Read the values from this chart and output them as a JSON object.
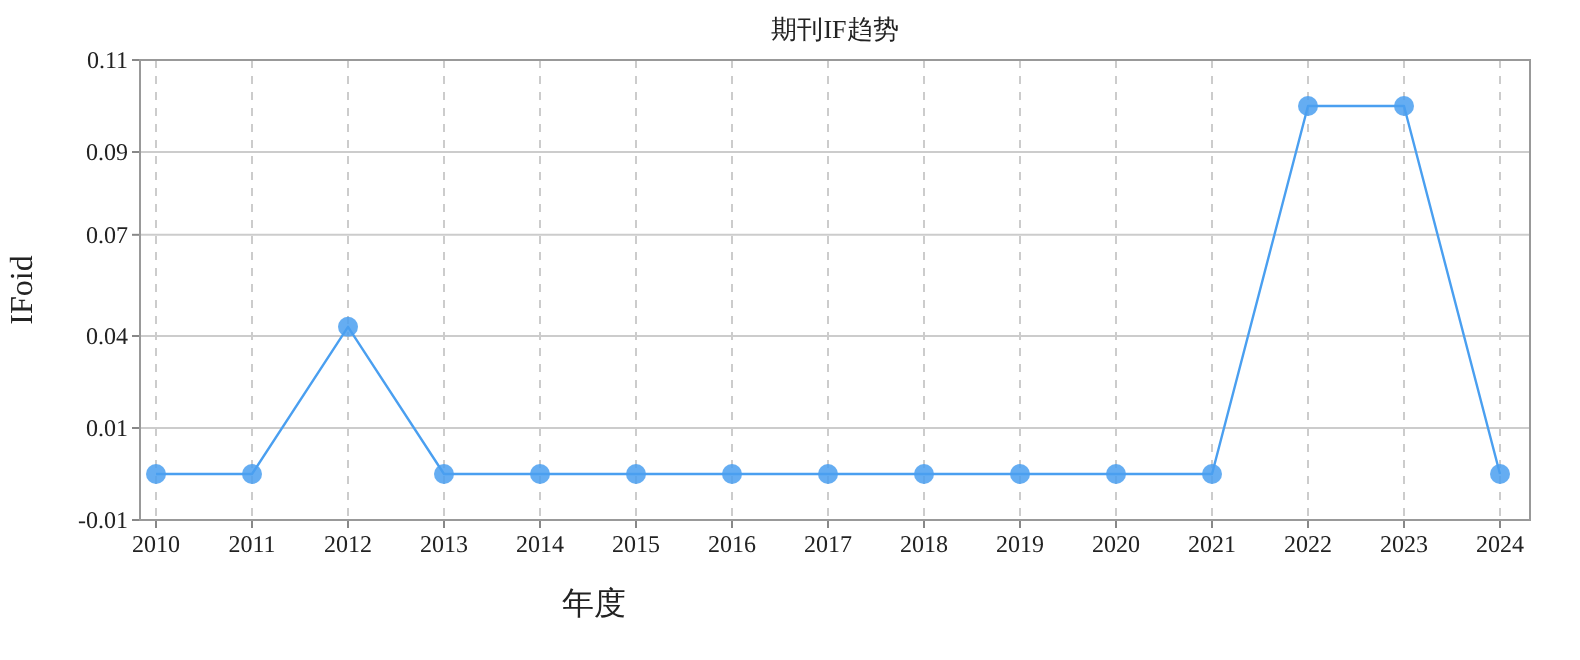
{
  "chart_data": {
    "type": "line",
    "title": "期刊IF趋势",
    "xlabel": "年度",
    "ylabel": "IFoid",
    "categories": [
      "2010",
      "2011",
      "2012",
      "2013",
      "2014",
      "2015",
      "2016",
      "2017",
      "2018",
      "2019",
      "2020",
      "2021",
      "2022",
      "2023",
      "2024"
    ],
    "series": [
      {
        "color": "#4a9ff0",
        "values": [
          0,
          0,
          0.04,
          0,
          0,
          0,
          0,
          0,
          0,
          0,
          0,
          0,
          0.1,
          0.1,
          0
        ]
      }
    ],
    "ylim": [
      -0.0125,
      0.1125
    ],
    "yticks": [
      {
        "value": -0.0125,
        "label": "-0.01"
      },
      {
        "value": 0.0125,
        "label": "0.01"
      },
      {
        "value": 0.0375,
        "label": "0.04"
      },
      {
        "value": 0.065,
        "label": "0.07"
      },
      {
        "value": 0.0875,
        "label": "0.09"
      },
      {
        "value": 0.1125,
        "label": "0.11"
      }
    ],
    "grid": true,
    "marker": "circle",
    "line_style": "solid"
  }
}
